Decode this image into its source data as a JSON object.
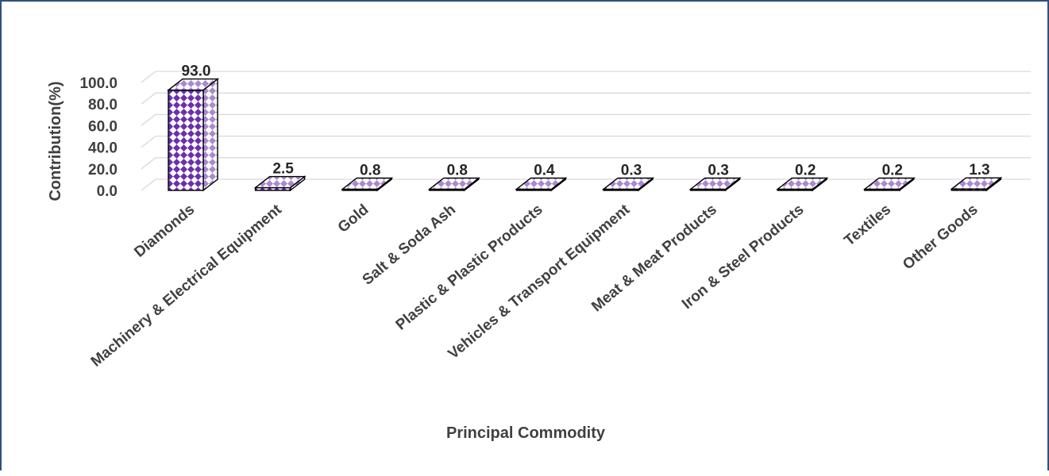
{
  "colors": {
    "frame_border": "#2f4f7f",
    "bar_face": "#6a2fb0",
    "bar_pattern_bg": "#ffffff",
    "bar_side": "#b9a3d6",
    "bar_top": "#c8b4e0",
    "gridline": "#d9d9d9",
    "axis_text": "#404040"
  },
  "chart_data": {
    "type": "bar",
    "title": "",
    "xlabel": "Principal Commodity",
    "ylabel": "Contribution(%)",
    "ylim": [
      0,
      100
    ],
    "yticks": [
      "0.0",
      "20.0",
      "40.0",
      "60.0",
      "80.0",
      "100.0"
    ],
    "grid": true,
    "legend": "none",
    "three_d": true,
    "categories": [
      "Diamonds",
      "Machinery & Electrical Equipment",
      "Gold",
      "Salt & Soda Ash",
      "Plastic & Plastic Products",
      "Vehicles & Transport Equipment",
      "Meat & Meat Products",
      "Iron & Steel Products",
      "Textiles",
      "Other Goods"
    ],
    "values": [
      93.0,
      2.5,
      0.8,
      0.8,
      0.4,
      0.3,
      0.3,
      0.2,
      0.2,
      1.3
    ],
    "data_labels": [
      "93.0",
      "2.5",
      "0.8",
      "0.8",
      "0.4",
      "0.3",
      "0.3",
      "0.2",
      "0.2",
      "1.3"
    ]
  }
}
